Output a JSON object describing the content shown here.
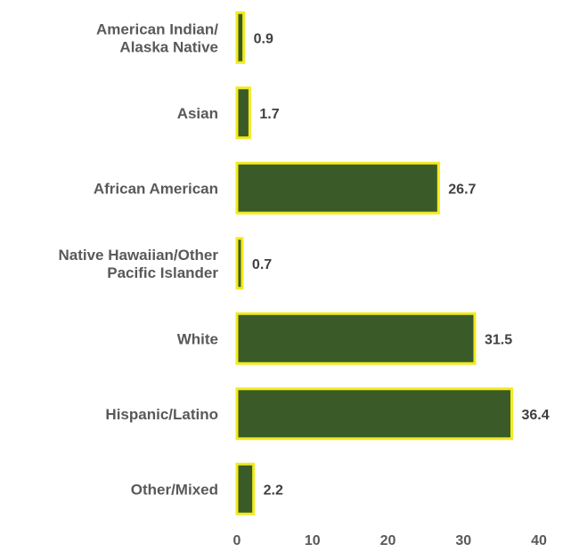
{
  "chart_data": {
    "type": "bar",
    "orientation": "horizontal",
    "categories": [
      [
        "American Indian/",
        "Alaska Native"
      ],
      [
        "Asian"
      ],
      [
        "African American"
      ],
      [
        "Native Hawaiian/Other",
        "Pacific Islander"
      ],
      [
        "White"
      ],
      [
        "Hispanic/Latino"
      ],
      [
        "Other/Mixed"
      ]
    ],
    "values": [
      0.9,
      1.7,
      26.7,
      0.7,
      31.5,
      36.4,
      2.2
    ],
    "value_labels": [
      "0.9",
      "1.7",
      "26.7",
      "0.7",
      "31.5",
      "36.4",
      "2.2"
    ],
    "xlim": [
      0,
      40
    ],
    "xticks": [
      0,
      10,
      20,
      30,
      40
    ],
    "title": "",
    "xlabel": "",
    "ylabel": "",
    "grid": false,
    "legend": "none",
    "colors": {
      "bar_fill": "#3a5a27",
      "bar_stroke": "#f2ea1e"
    }
  }
}
